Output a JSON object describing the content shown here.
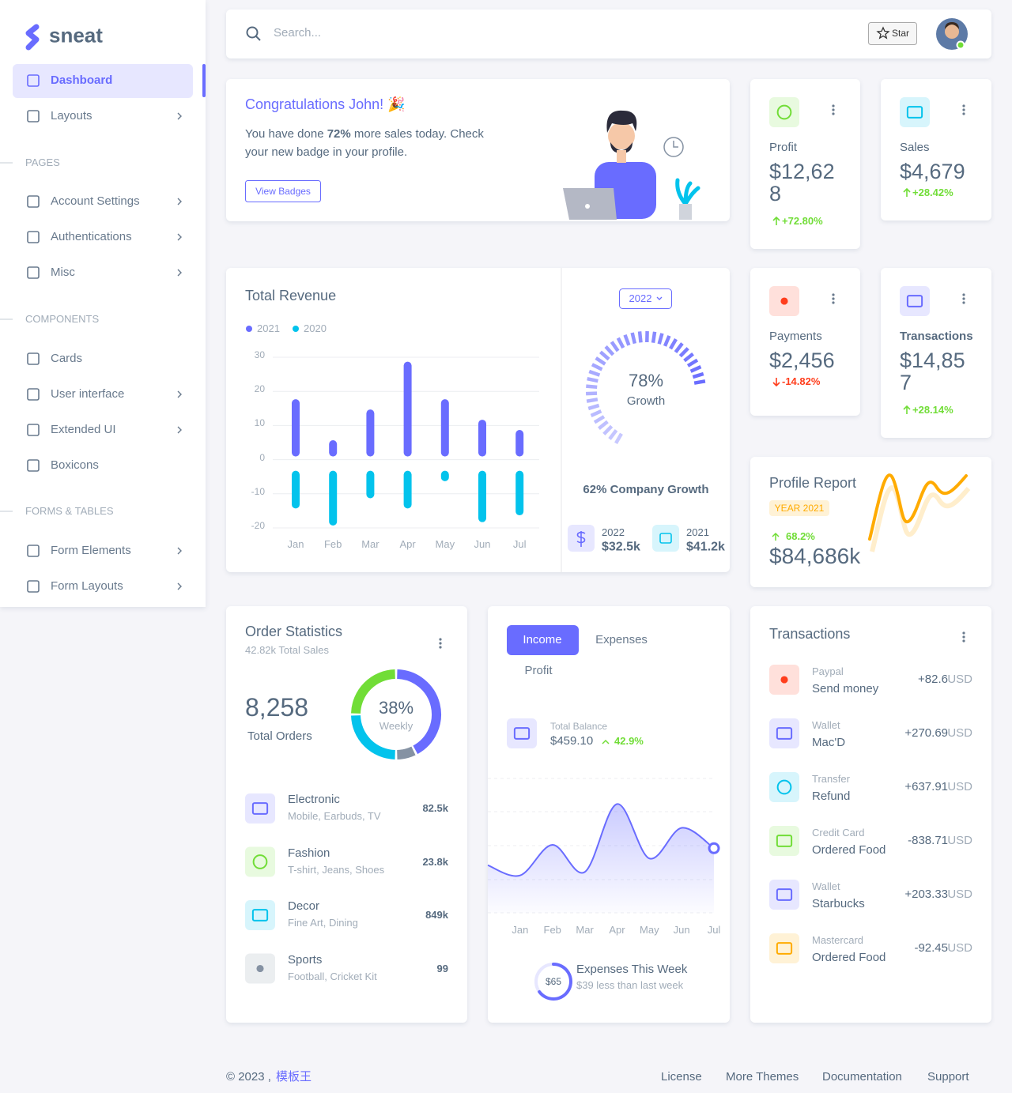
{
  "brand": "sneat",
  "nav": {
    "items": [
      "Dashboard",
      "Layouts",
      "Account Settings",
      "Authentications",
      "Misc",
      "Cards",
      "User interface",
      "Extended UI",
      "Boxicons",
      "Form Elements",
      "Form Layouts"
    ],
    "sections": [
      "PAGES",
      "COMPONENTS",
      "FORMS & TABLES"
    ]
  },
  "navbar": {
    "search": "Search...",
    "star": "Star"
  },
  "welcome": {
    "title": "Congratulations John! 🎉",
    "text_start": "You have done ",
    "highlight": "72%",
    "text_end": " more sales today. Check your new badge in your profile.",
    "button": "View Badges"
  },
  "stats": [
    {
      "label": "Profit",
      "value": "$12,628",
      "change": "+72.80%"
    },
    {
      "label": "Sales",
      "value": "$4,679",
      "change": "+28.42%"
    },
    {
      "label": "Payments",
      "value": "$2,456",
      "change": "-14.82%"
    },
    {
      "label": "Transactions",
      "value": "$14,857",
      "change": "+28.14%"
    }
  ],
  "chart_data": [
    {
      "type": "bar",
      "title": "Total Revenue",
      "categories": [
        "Jan",
        "Feb",
        "Mar",
        "Apr",
        "May",
        "Jun",
        "Jul"
      ],
      "series": [
        {
          "name": "2021",
          "color": "#696cff",
          "values": [
            17,
            5,
            14,
            28,
            17,
            11,
            8
          ]
        },
        {
          "name": "2020",
          "color": "#03c3ec",
          "values": [
            -15,
            -20,
            -12,
            -15,
            -7,
            -19,
            -17
          ]
        }
      ],
      "ylim": [
        -20,
        30
      ],
      "yticks": [
        30,
        20,
        10,
        0,
        -10,
        -20
      ],
      "grid": true
    },
    {
      "type": "area",
      "categories": [
        null,
        "Jan",
        "Feb",
        "Mar",
        "Apr",
        "May",
        "Jun",
        "Jul"
      ],
      "values": [
        24,
        21,
        30,
        22,
        42,
        26,
        35,
        29
      ],
      "color": "#696cff",
      "ylim": [
        10,
        50
      ]
    }
  ],
  "growth": {
    "year": "2022",
    "value": 78,
    "value_label": "78%",
    "caption": "Growth",
    "summary": "62% Company Growth",
    "items": [
      {
        "year": "2022",
        "amount": "$32.5k"
      },
      {
        "year": "2021",
        "amount": "$41.2k"
      }
    ]
  },
  "profile": {
    "title": "Profile Report",
    "badge": "YEAR 2021",
    "change": "68.2%",
    "value": "$84,686k"
  },
  "orders": {
    "title": "Order Statistics",
    "subtitle": "42.82k Total Sales",
    "total": "8,258",
    "total_label": "Total Orders",
    "donut": {
      "values": [
        85,
        15,
        50,
        50
      ],
      "colors": [
        "#696cff",
        "#8592a3",
        "#03c3ec",
        "#71dd37"
      ],
      "center": "38%",
      "center_label": "Weekly"
    },
    "items": [
      {
        "name": "Electronic",
        "desc": "Mobile, Earbuds, TV",
        "value": "82.5k"
      },
      {
        "name": "Fashion",
        "desc": "T-shirt, Jeans, Shoes",
        "value": "23.8k"
      },
      {
        "name": "Decor",
        "desc": "Fine Art, Dining",
        "value": "849k"
      },
      {
        "name": "Sports",
        "desc": "Football, Cricket Kit",
        "value": "99"
      }
    ]
  },
  "income": {
    "tabs": [
      "Income",
      "Expenses",
      "Profit"
    ],
    "balance_label": "Total Balance",
    "balance": "$459.10",
    "change": "42.9%",
    "expenses": {
      "value": 65,
      "value_label": "$65",
      "title": "Expenses This Week",
      "text": "$39 less than last week"
    }
  },
  "transactions": {
    "title": "Transactions",
    "currency": "USD",
    "items": [
      {
        "type": "Paypal",
        "desc": "Send money",
        "amount": "+82.6"
      },
      {
        "type": "Wallet",
        "desc": "Mac'D",
        "amount": "+270.69"
      },
      {
        "type": "Transfer",
        "desc": "Refund",
        "amount": "+637.91"
      },
      {
        "type": "Credit Card",
        "desc": "Ordered Food",
        "amount": "-838.71"
      },
      {
        "type": "Wallet",
        "desc": "Starbucks",
        "amount": "+203.33"
      },
      {
        "type": "Mastercard",
        "desc": "Ordered Food",
        "amount": "-92.45"
      }
    ]
  },
  "footer": {
    "copyright": "© 2023 , ",
    "brand": "模板王",
    "links": [
      "License",
      "More Themes",
      "Documentation",
      "Support"
    ]
  }
}
